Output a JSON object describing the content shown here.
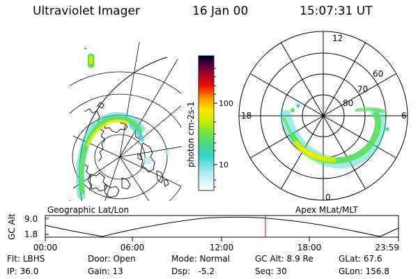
{
  "header": {
    "instrument": "Ultraviolet Imager",
    "date": "16 Jan 00",
    "time": "15:07:31 UT"
  },
  "colorbar": {
    "unit_label": "photon cm-2s-1",
    "ticks": [
      "100",
      "10"
    ]
  },
  "left_panel": {
    "caption": "Geographic Lat/Lon"
  },
  "right_panel": {
    "caption": "Apex MLat/MLT",
    "mlt_labels": [
      "12",
      "18",
      "6",
      "0"
    ],
    "mlat_labels": [
      "60",
      "70",
      "80"
    ]
  },
  "timeline": {
    "axis_label": "GC Alt",
    "y_ticks": [
      "9.0",
      "1.8"
    ],
    "x_ticks": [
      "00:00",
      "06:00",
      "12:00",
      "18:00",
      "23:59"
    ]
  },
  "status": {
    "row1": [
      {
        "label": "Flt:",
        "value": "LBHS"
      },
      {
        "label": "Door:",
        "value": "Open"
      },
      {
        "label": "Mode:",
        "value": "Normal"
      },
      {
        "label": "GC Alt:",
        "value": "8.9 Re"
      },
      {
        "label": "GLat:",
        "value": "67.6"
      }
    ],
    "row2": [
      {
        "label": "IP:",
        "value": "36.0"
      },
      {
        "label": "Gain:",
        "value": "13"
      },
      {
        "label": "Dsp:",
        "value": "-5.2"
      },
      {
        "label": "Seq:",
        "value": "30"
      },
      {
        "label": "GLon:",
        "value": "156.8"
      }
    ]
  }
}
